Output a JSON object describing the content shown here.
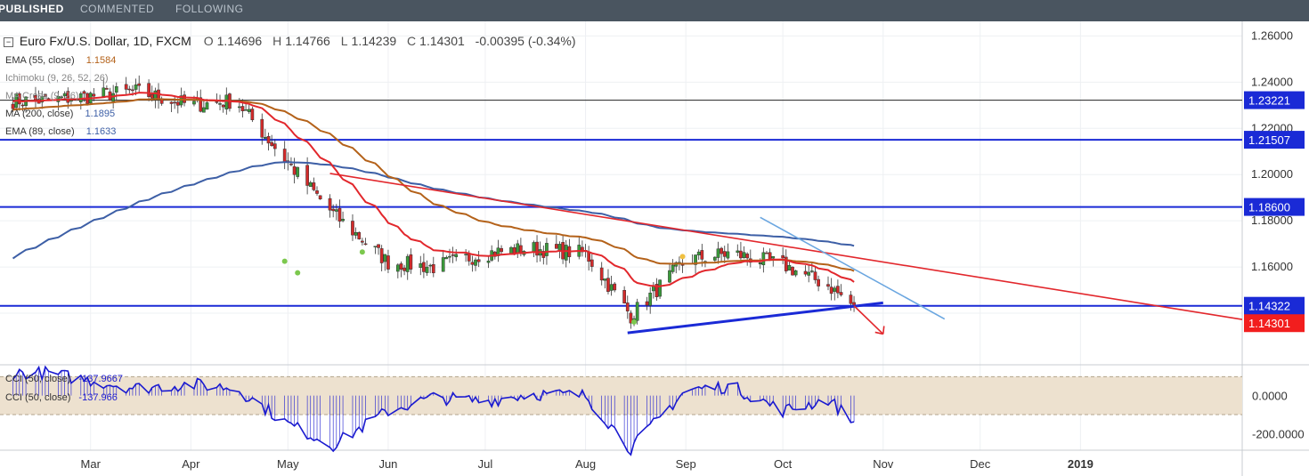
{
  "tabs": [
    {
      "label": "PUBLISHED",
      "active": true
    },
    {
      "label": "COMMENTED",
      "active": false
    },
    {
      "label": "FOLLOWING",
      "active": false
    }
  ],
  "header": {
    "symbol": "Euro Fx/U.S. Dollar, 1D, FXCM",
    "open_label": "O",
    "open": "1.14696",
    "high_label": "H",
    "high": "1.14766",
    "low_label": "L",
    "low": "1.14239",
    "close_label": "C",
    "close": "1.14301",
    "change": "-0.00395 (-0.34%)"
  },
  "indicators": [
    {
      "label": "EMA (55, close)",
      "value": "1.1584",
      "color": "#b4621a"
    },
    {
      "label": "Ichimoku (9, 26, 52, 26)",
      "value": "",
      "color": "#888888"
    },
    {
      "label": "MA Cross (9, 26)",
      "value": "",
      "color": "#888888"
    },
    {
      "label": "MA (200, close)",
      "value": "1.1895",
      "color": "#3d5fa6"
    },
    {
      "label": "EMA (89, close)",
      "value": "1.1633",
      "color": "#3d5fa6"
    }
  ],
  "colors": {
    "up": "#3a9a3a",
    "down": "#d22a2a",
    "ema55": "#b4621a",
    "ema_fast": "#e2272c",
    "ma200": "#3d5fa6",
    "hline": "#1a2ad6",
    "trend": "#e2272c",
    "tline_blue": "#6aa6e0",
    "cci": "#1a1ad0",
    "cci_band": "#ede1cf"
  },
  "price_axis": {
    "min": 1.12,
    "max": 1.264,
    "ticks": [
      "1.26000",
      "1.24000",
      "1.22000",
      "1.20000",
      "1.18000",
      "1.16000"
    ]
  },
  "price_labels": [
    {
      "value": 1.23221,
      "text": "1.23221",
      "kind": "level"
    },
    {
      "value": 1.21507,
      "text": "1.21507",
      "kind": "level"
    },
    {
      "value": 1.186,
      "text": "1.18600",
      "kind": "level"
    },
    {
      "value": 1.14322,
      "text": "1.14322",
      "kind": "level"
    },
    {
      "value": 1.14301,
      "text": "1.14301",
      "kind": "last"
    }
  ],
  "time_axis": [
    "Mar",
    "Apr",
    "May",
    "Jun",
    "Jul",
    "Aug",
    "Sep",
    "Oct",
    "Nov",
    "Dec",
    "2019"
  ],
  "cci": {
    "labels": [
      "CCI (50, close)",
      "CCI (50, close)"
    ],
    "value": "-137.9667",
    "value_short": "-137.966",
    "ticks": [
      "0.0000",
      "-200.0000"
    ],
    "band": [
      100,
      -100
    ],
    "range": [
      -250,
      125
    ]
  },
  "chart_data": {
    "type": "line",
    "title": "Euro Fx/U.S. Dollar, 1D, FXCM",
    "x": [
      "2018-02-15",
      "2018-03-01",
      "2018-03-15",
      "2018-04-01",
      "2018-04-15",
      "2018-05-01",
      "2018-05-15",
      "2018-06-01",
      "2018-06-15",
      "2018-07-01",
      "2018-07-15",
      "2018-08-01",
      "2018-08-15",
      "2018-09-01",
      "2018-09-15",
      "2018-10-01",
      "2018-10-15",
      "2018-10-23"
    ],
    "series": [
      {
        "values": [
          1.232,
          1.234,
          1.236,
          1.23,
          1.232,
          1.205,
          1.183,
          1.162,
          1.16,
          1.166,
          1.168,
          1.166,
          1.139,
          1.163,
          1.166,
          1.161,
          1.152,
          1.143
        ]
      }
    ],
    "last_close": 1.14301,
    "ylim": [
      1.12,
      1.264
    ],
    "horizontal_levels": [
      1.23221,
      1.21507,
      1.186,
      1.14322
    ],
    "secondary_series": {
      "type": "line",
      "values": [
        120,
        80,
        40,
        60,
        40,
        -150,
        -260,
        -80,
        -10,
        -30,
        10,
        0,
        -280,
        30,
        50,
        -80,
        -20,
        -137.9667
      ]
    }
  }
}
